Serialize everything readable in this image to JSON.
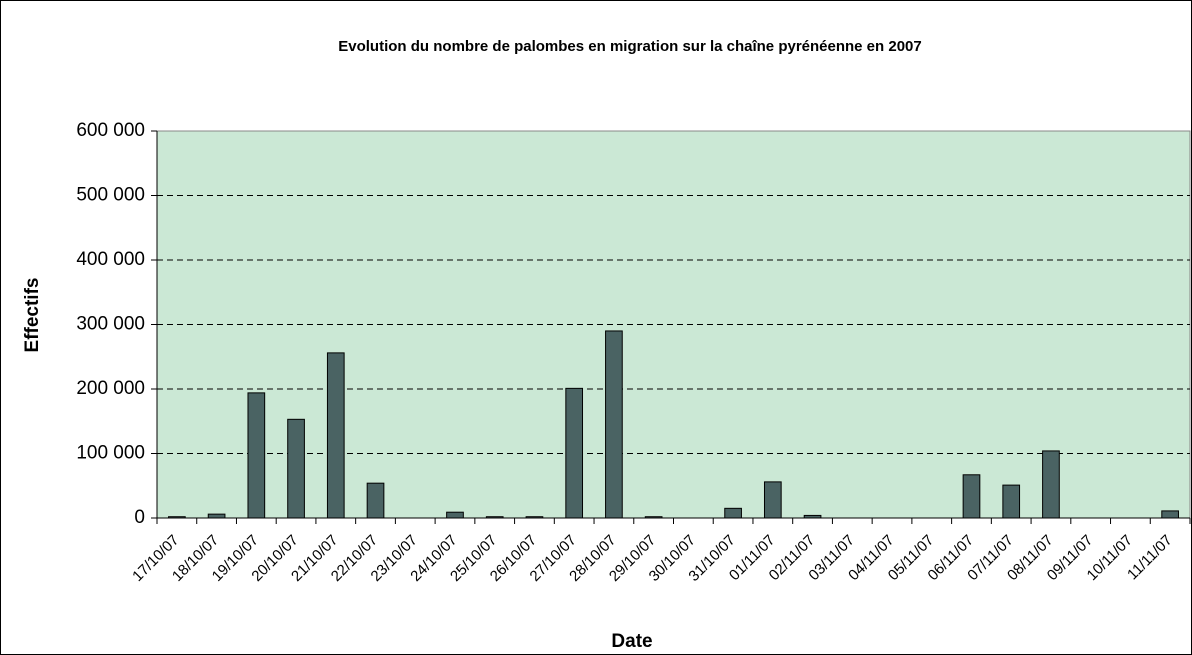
{
  "chart_data": {
    "type": "bar",
    "title": "Evolution du nombre de palombes en migration sur la chaîne pyrénéenne en 2007",
    "x_label": "Date",
    "y_label": "Effectifs",
    "categories": [
      "17/10/07",
      "18/10/07",
      "19/10/07",
      "20/10/07",
      "21/10/07",
      "22/10/07",
      "23/10/07",
      "24/10/07",
      "25/10/07",
      "26/10/07",
      "27/10/07",
      "28/10/07",
      "29/10/07",
      "30/10/07",
      "31/10/07",
      "01/11/07",
      "02/11/07",
      "03/11/07",
      "04/11/07",
      "05/11/07",
      "06/11/07",
      "07/11/07",
      "08/11/07",
      "09/11/07",
      "10/11/07",
      "11/11/07"
    ],
    "values": [
      2000,
      6000,
      194000,
      153000,
      256000,
      54000,
      0,
      9000,
      2000,
      2000,
      201000,
      290000,
      2000,
      0,
      15000,
      56000,
      4000,
      0,
      0,
      0,
      67000,
      51000,
      104000,
      0,
      0,
      11000
    ],
    "color": "#4a6363",
    "background": "#cbe8d5",
    "ylim": [
      0,
      600000
    ],
    "yticks": [
      {
        "value": 0,
        "label": "0"
      },
      {
        "value": 100000,
        "label": "100 000"
      },
      {
        "value": 200000,
        "label": "200 000"
      },
      {
        "value": 300000,
        "label": "300 000"
      },
      {
        "value": 400000,
        "label": "400 000"
      },
      {
        "value": 500000,
        "label": "500 000"
      },
      {
        "value": 600000,
        "label": "600 000"
      }
    ],
    "grid": true
  }
}
